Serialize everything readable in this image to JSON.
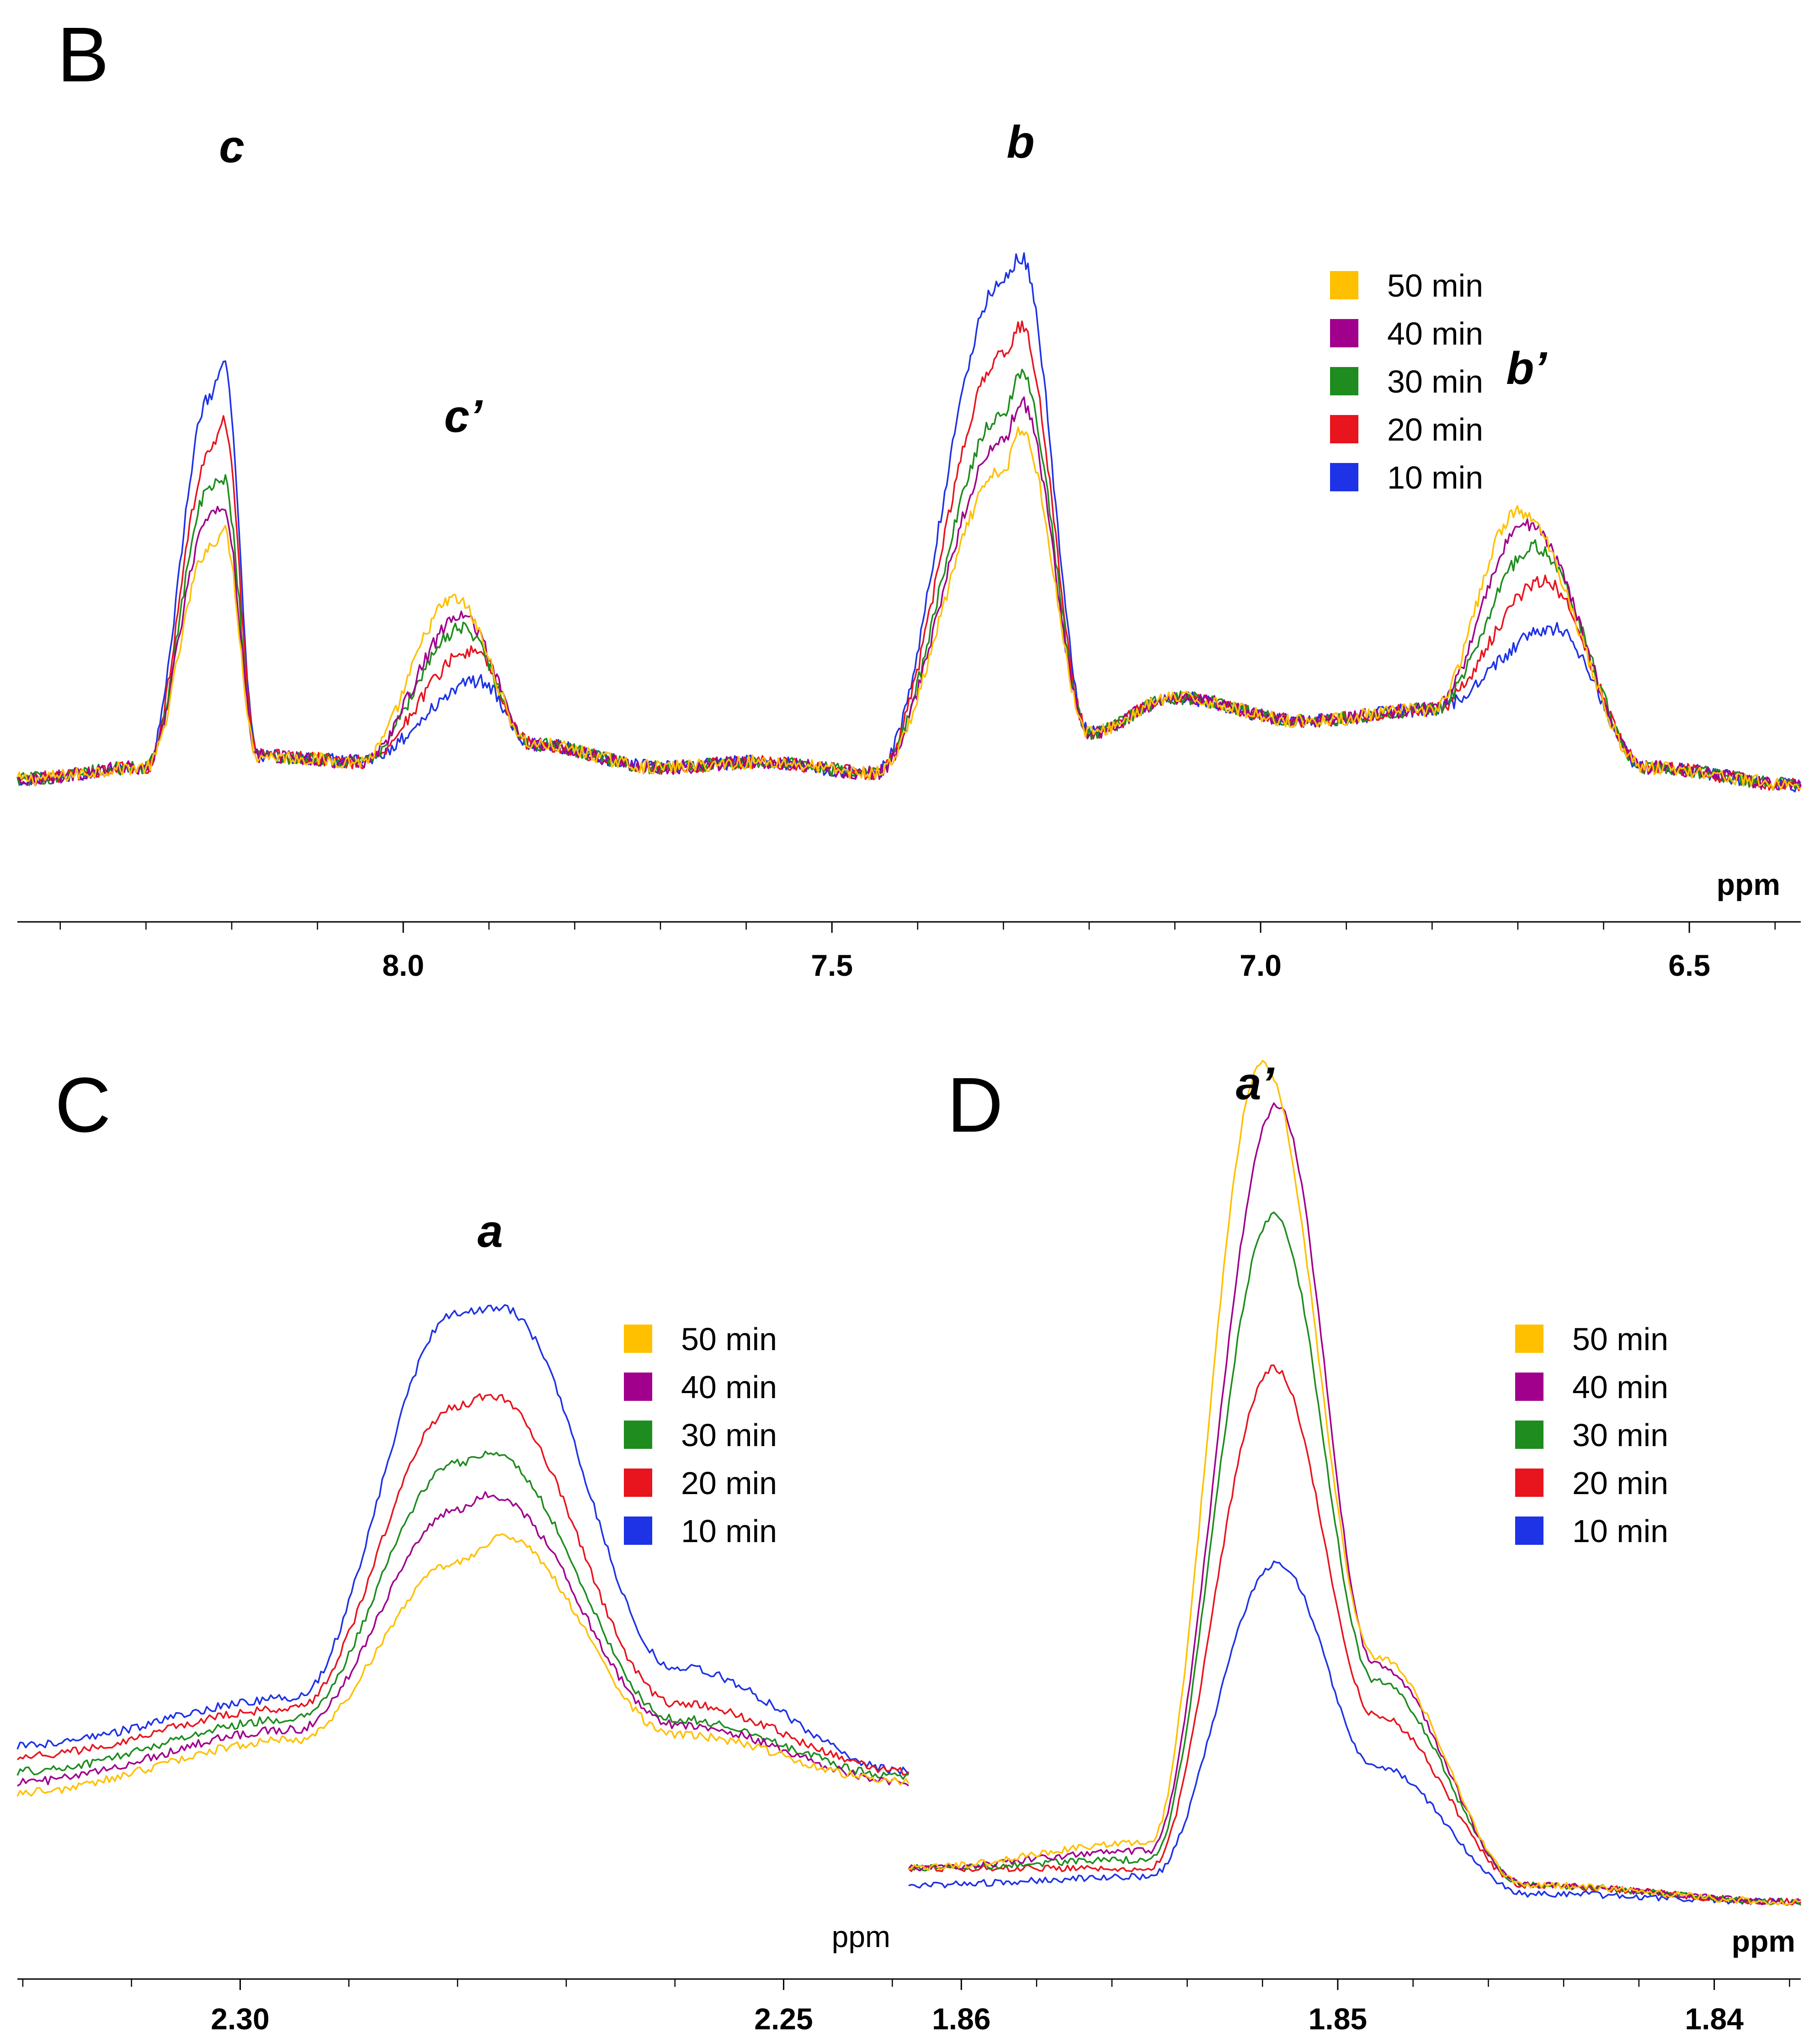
{
  "chart_data": [
    {
      "panel": "B",
      "type": "line",
      "x_unit": "ppm",
      "x_reversed": true,
      "xlim": [
        8.45,
        6.37
      ],
      "ticks": [
        "8.0",
        "7.5",
        "7.0",
        "6.5"
      ],
      "legend": [
        "50 min",
        "40 min",
        "30 min",
        "20 min",
        "10 min"
      ],
      "peak_labels": [
        {
          "text": "c",
          "x": 8.2
        },
        {
          "text": "c’",
          "x": 7.93
        },
        {
          "text": "b",
          "x": 7.28
        },
        {
          "text": "b’",
          "x": 6.69
        }
      ],
      "series": [
        {
          "name": "50 min",
          "color": "#FFC000",
          "values": [
            [
              8.45,
              0.02
            ],
            [
              8.3,
              0.04
            ],
            [
              8.225,
              0.42
            ],
            [
              8.21,
              0.45
            ],
            [
              8.17,
              0.06
            ],
            [
              8.05,
              0.05
            ],
            [
              7.94,
              0.33
            ],
            [
              7.85,
              0.08
            ],
            [
              7.7,
              0.04
            ],
            [
              7.58,
              0.05
            ],
            [
              7.45,
              0.03
            ],
            [
              7.3,
              0.55
            ],
            [
              7.28,
              0.62
            ],
            [
              7.2,
              0.1
            ],
            [
              7.1,
              0.16
            ],
            [
              6.95,
              0.12
            ],
            [
              6.8,
              0.14
            ],
            [
              6.7,
              0.48
            ],
            [
              6.55,
              0.04
            ],
            [
              6.37,
              0.01
            ]
          ]
        },
        {
          "name": "40 min",
          "color": "#A0008C",
          "values": [
            [
              8.45,
              0.02
            ],
            [
              8.3,
              0.04
            ],
            [
              8.225,
              0.47
            ],
            [
              8.21,
              0.49
            ],
            [
              8.17,
              0.06
            ],
            [
              8.05,
              0.05
            ],
            [
              7.93,
              0.3
            ],
            [
              7.85,
              0.08
            ],
            [
              7.7,
              0.04
            ],
            [
              7.58,
              0.05
            ],
            [
              7.45,
              0.03
            ],
            [
              7.3,
              0.6
            ],
            [
              7.28,
              0.67
            ],
            [
              7.2,
              0.1
            ],
            [
              7.1,
              0.16
            ],
            [
              6.95,
              0.12
            ],
            [
              6.8,
              0.14
            ],
            [
              6.69,
              0.46
            ],
            [
              6.55,
              0.04
            ],
            [
              6.37,
              0.01
            ]
          ]
        },
        {
          "name": "30 min",
          "color": "#1E8C1E",
          "values": [
            [
              8.45,
              0.02
            ],
            [
              8.3,
              0.04
            ],
            [
              8.225,
              0.52
            ],
            [
              8.21,
              0.54
            ],
            [
              8.17,
              0.06
            ],
            [
              8.05,
              0.05
            ],
            [
              7.93,
              0.28
            ],
            [
              7.85,
              0.08
            ],
            [
              7.7,
              0.04
            ],
            [
              7.58,
              0.05
            ],
            [
              7.45,
              0.03
            ],
            [
              7.3,
              0.65
            ],
            [
              7.28,
              0.72
            ],
            [
              7.2,
              0.1
            ],
            [
              7.1,
              0.16
            ],
            [
              6.95,
              0.12
            ],
            [
              6.8,
              0.14
            ],
            [
              6.68,
              0.42
            ],
            [
              6.55,
              0.04
            ],
            [
              6.37,
              0.01
            ]
          ]
        },
        {
          "name": "20 min",
          "color": "#E8141E",
          "values": [
            [
              8.45,
              0.02
            ],
            [
              8.3,
              0.04
            ],
            [
              8.225,
              0.58
            ],
            [
              8.21,
              0.64
            ],
            [
              8.17,
              0.06
            ],
            [
              8.05,
              0.05
            ],
            [
              7.92,
              0.24
            ],
            [
              7.85,
              0.08
            ],
            [
              7.7,
              0.04
            ],
            [
              7.58,
              0.05
            ],
            [
              7.45,
              0.03
            ],
            [
              7.3,
              0.75
            ],
            [
              7.28,
              0.8
            ],
            [
              7.2,
              0.1
            ],
            [
              7.1,
              0.16
            ],
            [
              6.95,
              0.12
            ],
            [
              6.8,
              0.14
            ],
            [
              6.67,
              0.36
            ],
            [
              6.55,
              0.04
            ],
            [
              6.37,
              0.01
            ]
          ]
        },
        {
          "name": "10 min",
          "color": "#1E32E6",
          "values": [
            [
              8.45,
              0.02
            ],
            [
              8.3,
              0.04
            ],
            [
              8.225,
              0.68
            ],
            [
              8.21,
              0.74
            ],
            [
              8.17,
              0.06
            ],
            [
              8.05,
              0.05
            ],
            [
              7.91,
              0.19
            ],
            [
              7.85,
              0.08
            ],
            [
              7.7,
              0.04
            ],
            [
              7.58,
              0.05
            ],
            [
              7.45,
              0.03
            ],
            [
              7.3,
              0.88
            ],
            [
              7.28,
              0.92
            ],
            [
              7.2,
              0.1
            ],
            [
              7.1,
              0.16
            ],
            [
              6.95,
              0.12
            ],
            [
              6.8,
              0.14
            ],
            [
              6.66,
              0.28
            ],
            [
              6.55,
              0.04
            ],
            [
              6.37,
              0.01
            ]
          ]
        }
      ]
    },
    {
      "panel": "C",
      "type": "line",
      "x_unit": "ppm",
      "x_reversed": true,
      "xlim": [
        2.3205,
        2.2385
      ],
      "ticks": [
        "2.30",
        "2.25"
      ],
      "legend": [
        "50 min",
        "40 min",
        "30 min",
        "20 min",
        "10 min"
      ],
      "peak_labels": [
        {
          "text": "a",
          "x": 2.277
        }
      ],
      "series": [
        {
          "name": "50 min",
          "color": "#FFC000",
          "values": [
            [
              2.3205,
              0.06
            ],
            [
              2.295,
              0.16
            ],
            [
              2.28,
              0.5
            ],
            [
              2.276,
              0.55
            ],
            [
              2.26,
              0.17
            ],
            [
              2.2385,
              0.08
            ]
          ]
        },
        {
          "name": "40 min",
          "color": "#A0008C",
          "values": [
            [
              2.3205,
              0.08
            ],
            [
              2.295,
              0.18
            ],
            [
              2.28,
              0.6
            ],
            [
              2.277,
              0.63
            ],
            [
              2.26,
              0.19
            ],
            [
              2.2385,
              0.08
            ]
          ]
        },
        {
          "name": "30 min",
          "color": "#1E8C1E",
          "values": [
            [
              2.3205,
              0.1
            ],
            [
              2.295,
              0.2
            ],
            [
              2.28,
              0.69
            ],
            [
              2.277,
              0.71
            ],
            [
              2.26,
              0.2
            ],
            [
              2.2385,
              0.09
            ]
          ]
        },
        {
          "name": "20 min",
          "color": "#E8141E",
          "values": [
            [
              2.3205,
              0.13
            ],
            [
              2.295,
              0.22
            ],
            [
              2.28,
              0.8
            ],
            [
              2.277,
              0.82
            ],
            [
              2.26,
              0.23
            ],
            [
              2.2385,
              0.1
            ]
          ]
        },
        {
          "name": "10 min",
          "color": "#1E32E6",
          "values": [
            [
              2.3205,
              0.15
            ],
            [
              2.295,
              0.24
            ],
            [
              2.28,
              0.98
            ],
            [
              2.276,
              0.99
            ],
            [
              2.26,
              0.3
            ],
            [
              2.2385,
              0.1
            ]
          ]
        }
      ]
    },
    {
      "panel": "D",
      "type": "line",
      "x_unit": "ppm",
      "x_reversed": true,
      "xlim": [
        1.8614,
        1.8377
      ],
      "ticks": [
        "1.86",
        "1.85",
        "1.84"
      ],
      "legend": [
        "50 min",
        "40 min",
        "30 min",
        "20 min",
        "10 min"
      ],
      "peak_labels": [
        {
          "text": "a’",
          "x": 1.8522
        }
      ],
      "series": [
        {
          "name": "50 min",
          "color": "#FFC000",
          "values": [
            [
              1.8614,
              0.05
            ],
            [
              1.855,
              0.08
            ],
            [
              1.852,
              1.0
            ],
            [
              1.849,
              0.3
            ],
            [
              1.845,
              0.03
            ],
            [
              1.8377,
              0.01
            ]
          ]
        },
        {
          "name": "40 min",
          "color": "#A0008C",
          "values": [
            [
              1.8614,
              0.05
            ],
            [
              1.855,
              0.07
            ],
            [
              1.8516,
              0.95
            ],
            [
              1.849,
              0.29
            ],
            [
              1.845,
              0.03
            ],
            [
              1.8377,
              0.01
            ]
          ]
        },
        {
          "name": "30 min",
          "color": "#1E8C1E",
          "values": [
            [
              1.8614,
              0.05
            ],
            [
              1.855,
              0.06
            ],
            [
              1.8517,
              0.82
            ],
            [
              1.849,
              0.27
            ],
            [
              1.845,
              0.03
            ],
            [
              1.8377,
              0.01
            ]
          ]
        },
        {
          "name": "20 min",
          "color": "#E8141E",
          "values": [
            [
              1.8614,
              0.05
            ],
            [
              1.855,
              0.05
            ],
            [
              1.8517,
              0.64
            ],
            [
              1.849,
              0.23
            ],
            [
              1.845,
              0.03
            ],
            [
              1.8377,
              0.01
            ]
          ]
        },
        {
          "name": "10 min",
          "color": "#1E32E6",
          "values": [
            [
              1.8614,
              0.03
            ],
            [
              1.855,
              0.04
            ],
            [
              1.8516,
              0.41
            ],
            [
              1.849,
              0.17
            ],
            [
              1.845,
              0.02
            ],
            [
              1.8377,
              0.01
            ]
          ]
        }
      ]
    }
  ],
  "labels": {
    "panel_b": "B",
    "panel_c": "C",
    "panel_d": "D",
    "unit_b": "ppm",
    "unit_c": "ppm",
    "unit_d": "ppm"
  }
}
